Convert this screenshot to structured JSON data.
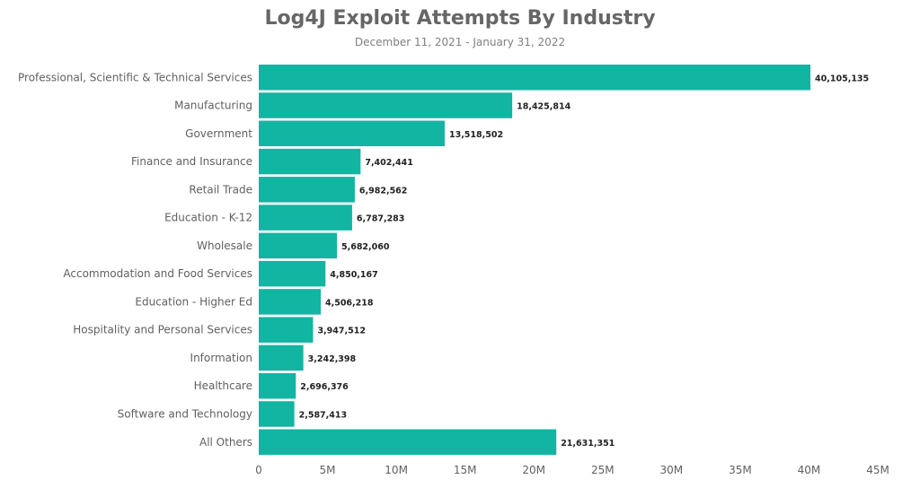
{
  "chart_data": {
    "type": "bar",
    "orientation": "horizontal",
    "title": "Log4J Exploit Attempts By Industry",
    "subtitle": "December 11, 2021 - January 31, 2022",
    "categories": [
      "Professional, Scientific & Technical Services",
      "Manufacturing",
      "Government",
      "Finance and Insurance",
      "Retail Trade",
      "Education - K-12",
      "Wholesale",
      "Accommodation and Food Services",
      "Education - Higher Ed",
      "Hospitality and Personal Services",
      "Information",
      "Healthcare",
      "Software and Technology",
      "All Others"
    ],
    "values": [
      40105135,
      18425814,
      13518502,
      7402441,
      6982562,
      6787283,
      5682060,
      4850167,
      4506218,
      3947512,
      3242398,
      2696376,
      2587413,
      21631351
    ],
    "value_labels": [
      "40,105,135",
      "18,425,814",
      "13,518,502",
      "7,402,441",
      "6,982,562",
      "6,787,283",
      "5,682,060",
      "4,850,167",
      "4,506,218",
      "3,947,512",
      "3,242,398",
      "2,696,376",
      "2,587,413",
      "21,631,351"
    ],
    "xlim": [
      0,
      45000000
    ],
    "xticks": [
      0,
      5000000,
      10000000,
      15000000,
      20000000,
      25000000,
      30000000,
      35000000,
      40000000,
      45000000
    ],
    "xtick_labels": [
      "0",
      "5M",
      "10M",
      "15M",
      "20M",
      "25M",
      "30M",
      "35M",
      "40M",
      "45M"
    ],
    "xlabel": "",
    "ylabel": "",
    "grid": false,
    "bar_color": "#12B5A2"
  }
}
